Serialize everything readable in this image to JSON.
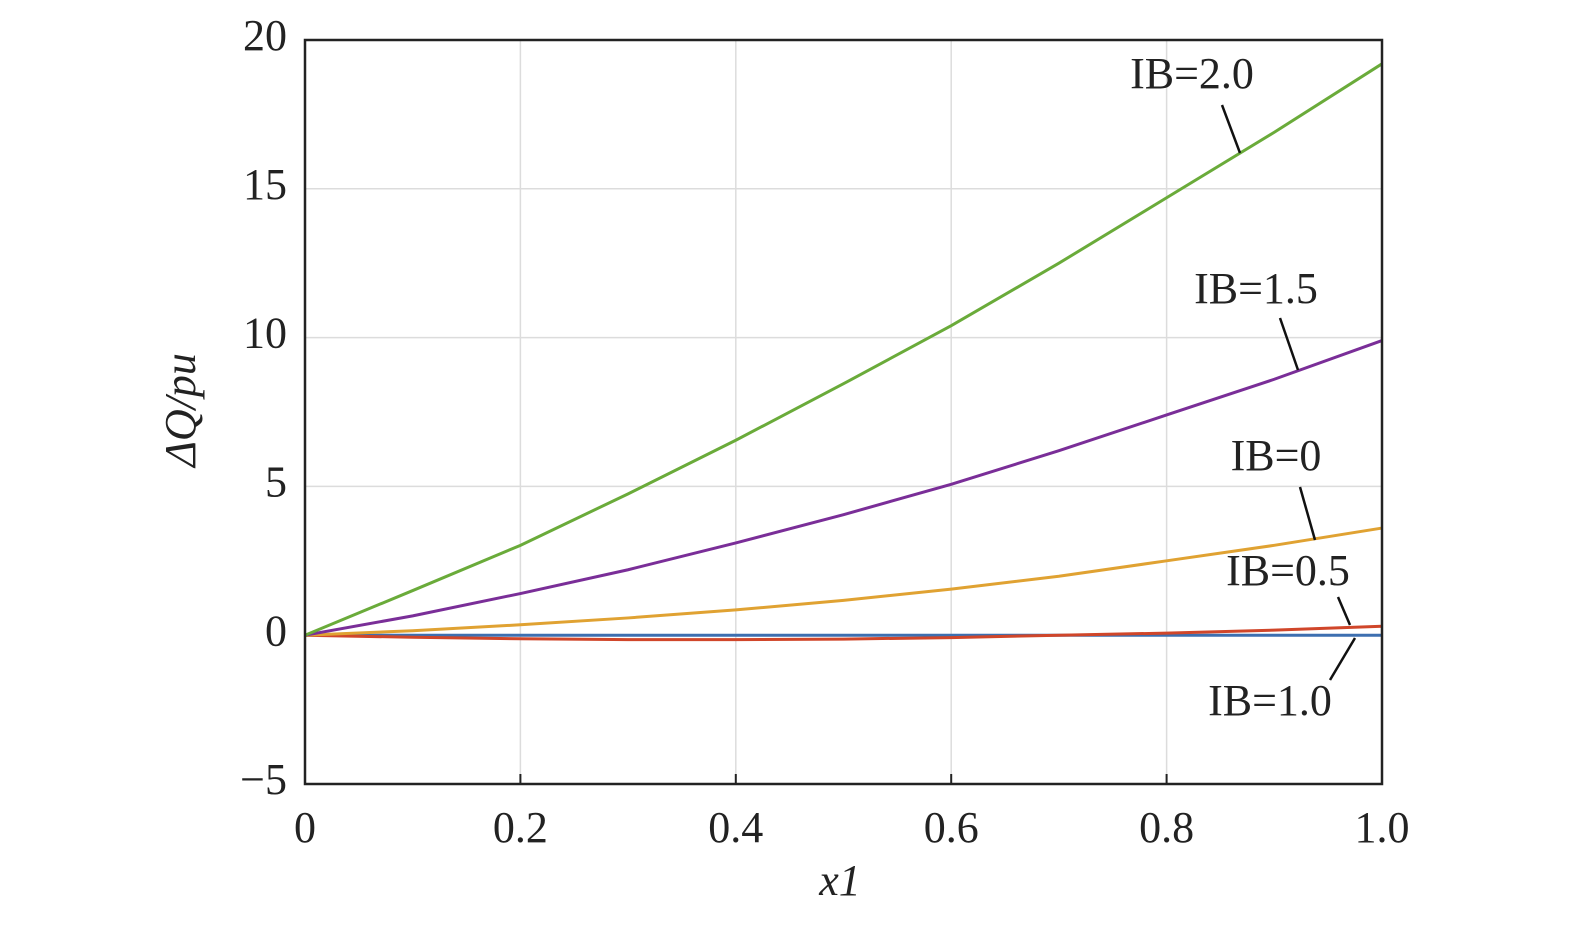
{
  "chart_data": {
    "type": "line",
    "x": [
      0,
      0.1,
      0.2,
      0.3,
      0.4,
      0.5,
      0.6,
      0.7,
      0.8,
      0.9,
      1.0
    ],
    "series": [
      {
        "name": "IB=1.0",
        "color": "#3d6fb0",
        "values": [
          0,
          0,
          0,
          0,
          0,
          0,
          0,
          0,
          0,
          0,
          0
        ]
      },
      {
        "name": "IB=0.5",
        "color": "#d0462a",
        "values": [
          0,
          -0.07,
          -0.12,
          -0.15,
          -0.15,
          -0.13,
          -0.08,
          0.0,
          0.07,
          0.17,
          0.3
        ]
      },
      {
        "name": "IB=0",
        "color": "#e0a232",
        "values": [
          0,
          0.15,
          0.35,
          0.58,
          0.85,
          1.17,
          1.55,
          1.98,
          2.5,
          3.02,
          3.6
        ]
      },
      {
        "name": "IB=1.5",
        "color": "#7a2e98",
        "values": [
          0,
          0.65,
          1.4,
          2.2,
          3.1,
          4.05,
          5.07,
          6.2,
          7.4,
          8.6,
          9.9
        ]
      },
      {
        "name": "IB=2.0",
        "color": "#6aab3a",
        "values": [
          0,
          1.5,
          3.02,
          4.75,
          6.55,
          8.45,
          10.4,
          12.5,
          14.7,
          16.9,
          19.2
        ]
      }
    ],
    "xlabel": "x1",
    "ylabel": "ΔQ/pu",
    "xlim": [
      0,
      1
    ],
    "ylim": [
      -5,
      20
    ],
    "xticks": [
      0,
      0.2,
      0.4,
      0.6,
      0.8,
      {
        "value": 1,
        "label": "1.0"
      }
    ],
    "yticks": [
      {
        "value": -5,
        "label": "−5"
      },
      0,
      5,
      10,
      15,
      20
    ],
    "grid": true
  }
}
